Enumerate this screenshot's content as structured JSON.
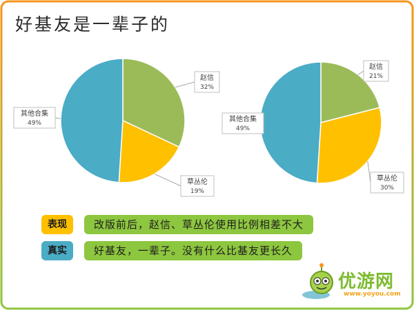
{
  "header": {
    "title": "好基友是一辈子的"
  },
  "chart_data": [
    {
      "type": "pie",
      "slices": [
        {
          "label": "赵信",
          "value": 32,
          "value_label": "32%",
          "color": "#9bbb59"
        },
        {
          "label": "草丛伦",
          "value": 19,
          "value_label": "19%",
          "color": "#ffc000"
        },
        {
          "label": "其他合集",
          "value": 49,
          "value_label": "49%",
          "color": "#4bacc6"
        }
      ]
    },
    {
      "type": "pie",
      "slices": [
        {
          "label": "赵信",
          "value": 21,
          "value_label": "21%",
          "color": "#9bbb59"
        },
        {
          "label": "草丛伦",
          "value": 30,
          "value_label": "30%",
          "color": "#ffc000"
        },
        {
          "label": "其他合集",
          "value": 49,
          "value_label": "49%",
          "color": "#4bacc6"
        }
      ]
    }
  ],
  "notes": [
    {
      "tag": "表现",
      "text": "改版前后，赵信、草丛伦使用比例相差不大",
      "tag_color": "#ffc000"
    },
    {
      "tag": "真实",
      "text": "好基友，一辈子。没有什么比基友更长久",
      "tag_color": "#4bacc6"
    }
  ],
  "colors": {
    "frame_top": "#f7941d",
    "frame_bottom": "#8dc63f"
  },
  "logo": {
    "text": "优游网",
    "sub": "www.yoyou.com",
    "icon": "robot-mascot-icon"
  }
}
